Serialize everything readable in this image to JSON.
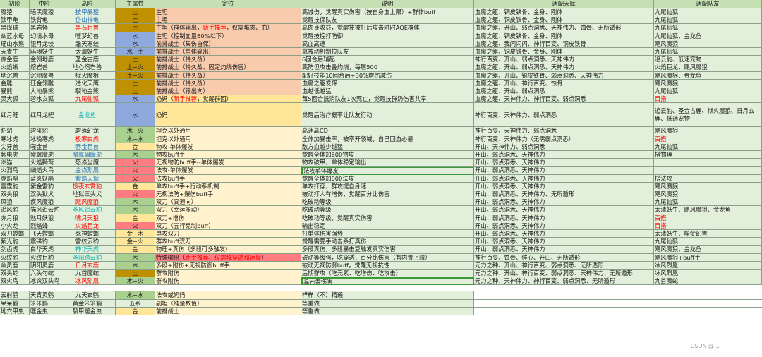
{
  "headers": [
    "初阶",
    "中阶",
    "高阶",
    "主属性",
    "定位",
    "说明",
    "适配天赋",
    "适配队友"
  ],
  "colors": {
    "header": "#c6e0b4",
    "body": "#e2efda",
    "earth": "#bf9000",
    "water": "#8ea9db",
    "fire": "#ff7c80",
    "wood": "#a9d08e",
    "gold": "#ffe699",
    "red_text": "#ff0000",
    "blue_text": "#2e75b6",
    "teal_text": "#00b0b0"
  },
  "rows": [
    {
      "c": [
        "魔猿",
        "暗黑魔猿",
        "披甲暴猿",
        "土",
        "主坦",
        "高减伤，觉醒真实伤害（按自身血上限）+群体buff",
        "血魔之躯、铜皮铁骨、金身、刚体",
        "九尾仙狐"
      ],
      "hc": "blue",
      "el": "earth",
      "pos": "#f8cbad"
    },
    {
      "c": [
        "锁甲龟",
        "铁背龟",
        "岱山神龟",
        "土",
        "主坦",
        "觉醒技保队友",
        "血魔之躯、铜皮铁骨、金身、刚体",
        "九尾仙狐"
      ],
      "hc": "blue",
      "el": "earth",
      "pos": "#f8cbad"
    },
    {
      "c": [
        "黑煤球",
        "黑岩怪",
        "黑石巨兽",
        "土",
        "主坦（群体输出，新手推荐，仅需堆肉、血）",
        "高肉身收益，觉醒技被打后攻击时时AOE群体",
        "血魔之躯、开山、弱点洞悉、天神伟力、蚀骨、无所遁形",
        "九尾仙狐"
      ],
      "hc": "red",
      "el": "earth",
      "pos": "#f8cbad",
      "posParts": [
        "主坦（群体输出，",
        "新手推荐",
        "，仅需堆肉、血）"
      ]
    },
    {
      "c": [
        "幽蓝水母",
        "幻境水母",
        "噬梦幻兽",
        "水",
        "主坦（控制血量60%以下）",
        "觉醒技控打防御",
        "血魔之躯、铜皮铁骨、金身、刚体",
        "九尾仙狐、金龙鱼"
      ],
      "el": "water",
      "pos": "#f8cbad"
    },
    {
      "c": [
        "瑶山水熊",
        "银月龙饺",
        "霜天寒蛟",
        "水",
        "前排战士（集伤自保）",
        "高血高速",
        "血魔之躯、我闪闪闪、神行百变、铜皮铁骨",
        "飓风魔狼"
      ],
      "el": "water",
      "pos": "#f8cbad"
    },
    {
      "c": [
        "天青牛",
        "暗魂妖牛",
        "太清妖牛",
        "水+土",
        "前排战士（单体输出）",
        "靠被动机制拉队友",
        "血魔之躯、铜皮铁骨、金身、刚体",
        "九尾仙狐"
      ],
      "el": "water",
      "pos": "#f8cbad"
    },
    {
      "c": [
        "赤金鹿",
        "金翎地鹿",
        "圣金古鹿",
        "土",
        "前排战士（持久战）",
        "6回合后辅起",
        "神行百变、开山、弱点洞悉、天神伟力",
        "追云豹、低速宠物"
      ],
      "el": "earth",
      "pos": "#f8cbad"
    },
    {
      "c": [
        "火焰蜥",
        "熔岩兽",
        "地心熔岩兽",
        "土+火",
        "前排战士（持久战、固定灼烧伤害）",
        "高防但攻击叠灼烧，每层500",
        "血魔之躯、开山、弱点洞悉、天神伟力",
        "火焰巨龙、飓风魔狼"
      ],
      "el": "earth",
      "pos": "#f8cbad"
    },
    {
      "c": [
        "地沉兽",
        "沉地魔兽",
        "狱火魔狼",
        "土+火",
        "前排战士（持久战）",
        "配好技能10回合后+30%增伤减伤",
        "血魔之躯、开山、铜皮铁骨、弱点洞悉、天神伟力",
        "飓风魔狼、金龙鱼"
      ],
      "el": "earth",
      "pos": "#f8cbad"
    },
    {
      "c": [
        "金雕",
        "狂金翎雕",
        "造化天鹰",
        "土",
        "前排战士（持久战）",
        "血魔之躯发挥",
        "血魔之躯、开山、神行百变、蚀骨",
        "飓风魔狼"
      ],
      "el": "earth",
      "pos": "#f8cbad"
    },
    {
      "c": [
        "暴熊",
        "大地暴熊",
        "裂地金熊",
        "土",
        "前排战士（输出向）",
        "血越低越猛",
        "血魔之躯、开山、弱点洞悉",
        "九尾仙狐"
      ],
      "el": "earth",
      "pos": "#f8cbad"
    },
    {
      "c": [
        "灵犬狐",
        "碧水玄狐",
        "九尾仙狐",
        "水",
        "奶妈（新手推荐，觉醒群回）",
        "每5回合抵消队友1次死亡，觉醒技群奶伤害共享",
        "血魔之躯、天神伟力、神行百变、弱点洞悉",
        "百搭"
      ],
      "hc": "red",
      "el": "water",
      "pos": "#ffe699",
      "posParts": [
        "奶妈（",
        "新手推荐",
        "，觉醒群回）"
      ],
      "lastRed": true
    },
    {
      "c": [
        "红月鲤",
        "红月龙鲤",
        "金龙鱼",
        "水",
        "奶妈",
        "觉醒后治疗概率让队友行动",
        "神行百变、天神伟力、弱点洞悉",
        "追云豹、圣金古鹿、狱火魔狼、日月玄鹿、低速宠物"
      ],
      "hc": "teal",
      "el": "water",
      "pos": "#ffe699",
      "tall": true
    },
    {
      "c": [
        "貂貂",
        "碧玺貂",
        "碧落幻龙",
        "木+火",
        "坦克以外通用",
        "高速高CD",
        "神行百变、天神伟力、弱点洞悉",
        "飓风魔狼"
      ],
      "el": "wood",
      "pos": "#fff2cc"
    },
    {
      "c": [
        "寒冰虎",
        "冰晚寒虎",
        "极寒白虎",
        "木+水",
        "坦克以外通用",
        "全体加暴击率，被率开领域，自己回血必暴",
        "神行百变、天神伟力（无需弱点洞悉）",
        "百搭"
      ],
      "hc": "red",
      "el": "wood",
      "pos": "#fff2cc",
      "lastRed": true
    },
    {
      "c": [
        "尖牙兽",
        "噬金兽",
        "吞金巨兽",
        "金",
        "物攻-单体爆发",
        "敌方血越少越猛",
        "开山、天神伟力、弱点洞悉",
        "九尾仙狐"
      ],
      "hc": "blue",
      "el": "gold",
      "pos": "#fff2cc"
    },
    {
      "c": [
        "紫电虎",
        "紫翼魔虎",
        "魔翼幽瞳虎",
        "木",
        "物攻buff手",
        "觉醒全体加600物攻",
        "开山、弱点洞悉、天神伟力",
        "搭物理"
      ],
      "hc": "blue",
      "el": "wood",
      "pos": "#fff2cc"
    },
    {
      "c": [
        "炎猫",
        "火焰狮鹫",
        "怒焱当魔",
        "火",
        "无视物防buff手--单体爆发",
        "物攻破甲，单体稳定输出",
        "开山、弱点洞悉、天神伟力",
        ""
      ],
      "el": "fire",
      "pos": "#fff2cc"
    },
    {
      "c": [
        "火烈鸟",
        "幽焰火鸟",
        "金焱烈凰",
        "火",
        "法攻-单体爆发",
        "法攻单体爆发",
        "开山、弱点洞悉、天神伟力",
        ""
      ],
      "hc": "blue",
      "el": "fire",
      "pos": "#fff2cc",
      "hl": 5
    },
    {
      "c": [
        "赤焰鹃",
        "蓝炎妖鹃",
        "紫焰天鹫",
        "火",
        "法攻buff手",
        "觉醒全体加600法攻",
        "开山、弱点洞悉、天神伟力",
        "搭法攻"
      ],
      "hc": "blue",
      "el": "fire",
      "pos": "#fff2cc"
    },
    {
      "c": [
        "雷霆豹",
        "紫金雷豹",
        "极夜玄霄豹",
        "金",
        "单攻buff手+行动系机制",
        "单攻打穿，群攻提自身速",
        "开山、弱点洞悉、天神伟力",
        "飓风魔狼"
      ],
      "hc": "red",
      "el": "gold",
      "pos": "#fff2cc"
    },
    {
      "c": [
        "双头狼",
        "双头狱犬",
        "地狱三头犬",
        "火",
        "无视法防+爆伤buff手",
        "被动打人有增伤，觉醒百分比伤害",
        "开山、弱点洞悉、天神伟力、无所遁形",
        "飓风魔狼"
      ],
      "el": "fire",
      "pos": "#fff2cc"
    },
    {
      "c": [
        "风狼",
        "疾风魔狼",
        "飓风魔狼",
        "木",
        "双刀（高速向）",
        "吃破动等级",
        "开山、弱点洞悉、天神伟力",
        "九尾仙狐"
      ],
      "hc": "red",
      "el": "wood",
      "pos": "#fff2cc"
    },
    {
      "c": [
        "追风豹",
        "猫风追云豹",
        "圣风追云豹",
        "木",
        "双刀（幸运多动）",
        "吃破动等级",
        "开山、弱点洞悉、天神伟力",
        "太清妖牛、飓风魔狼、金龙鱼"
      ],
      "hc": "teal",
      "el": "wood",
      "pos": "#fff2cc"
    },
    {
      "c": [
        "赤月狼",
        "魅月妖狼",
        "啸月天狼",
        "金",
        "双刀+增伤",
        "吃破动等级，觉醒真实伤害",
        "开山、弱点洞悉、天神伟力",
        "百搭"
      ],
      "hc": "red",
      "el": "gold",
      "pos": "#fff2cc",
      "lastRed": true
    },
    {
      "c": [
        "小火龙",
        "烈焰蜂",
        "火焰巨龙",
        "火",
        "双刀（五行克制buff）",
        "输出稳定",
        "开山、弱点洞悉、天神伟力",
        "百搭"
      ],
      "hc": "red",
      "el": "fire",
      "pos": "#fff2cc",
      "lastRed": true
    },
    {
      "c": [
        "双刀螳螂",
        "飞天螳螂",
        "死神螳螂",
        "金+木",
        "单攻双刀",
        "打单体伤害强势",
        "开山、弱点洞悉、天神伟力",
        "太清妖牛、噬梦幻兽"
      ],
      "el": "gold",
      "pos": "#fff2cc"
    },
    {
      "c": [
        "紫光豹",
        "震磁豹",
        "雷纹云豹",
        "金+火",
        "群攻buff双刀",
        "觉醒需要手动击杀打真伤",
        "开山、弱点洞悉、天神伟力",
        "九尾仙狐"
      ],
      "el": "gold",
      "pos": "#fff2cc"
    },
    {
      "c": [
        "剑齿虎",
        "白华天虎",
        "神华天虎",
        "金",
        "物理+真伤（多段可多触发）",
        "多段真伤，多段暴击复触发真实伤害",
        "开山、弱点洞悉、天神伟力",
        "飓风魔狼、金龙鱼"
      ],
      "hc": "teal",
      "el": "gold",
      "pos": "#fff2cc"
    },
    {
      "c": [
        "火纹豹",
        "火纹巨豹",
        "圣阳踏云豹",
        "木",
        "特殊输出（新手推荐，仅需堆穿透和速度）",
        "破动等级强，吃穿透，百分比伤害（有内置上限）",
        "神行百变、蚀骨、催心、开山、无所遁形",
        "飓风魔狼+buff手"
      ],
      "hc": "teal",
      "el": "wood",
      "pos": "#ff7c80",
      "posParts": [
        "特殊输出（",
        "新手推荐、仅需堆穿透和速度",
        "）"
      ]
    },
    {
      "c": [
        "幽灵鹿",
        "阴阳灵鹿",
        "日月玄鹿",
        "木",
        "多段+附伤+无视防御buff手",
        "被动无视防御buff，觉醒无视抗性",
        "元力之种、开山、神行百变、弱点洞悉、无所遁形",
        "冰风烈凰"
      ],
      "hc": "red",
      "el": "wood",
      "pos": "#fff2cc"
    },
    {
      "c": [
        "双头蛇",
        "六头勾蛇",
        "九首魔蛇",
        "土",
        "群攻附伤",
        "后期群攻（吃元素、吃增伤、吃攻击）",
        "元力之种、开山、神行百变、弱点洞悉、天神伟力、无所遁形",
        "冰风烈凰"
      ],
      "el": "earth",
      "pos": "#fff2cc"
    },
    {
      "c": [
        "双火鸟",
        "冰炎双头鸟",
        "冰风烈凰",
        "木+火",
        "群攻附伤",
        "高元素伤害",
        "元力之种、天神伟力、神行百变、弱点洞悉、无所遁形",
        "九首魔蛇"
      ],
      "hc": "red",
      "el": "wood",
      "pos": "#fff2cc",
      "hl": 5
    },
    {
      "c": [
        "云射鹤",
        "天青灵鹤",
        "九天玄鹤",
        "木+水",
        "法攻或奶妈",
        "样样（不）精通",
        "",
        ""
      ],
      "el": "wood",
      "pos": "#fff2cc",
      "gapBefore": true,
      "noRight": true
    },
    {
      "c": [
        "呆呆鹤",
        "笨笨鹤",
        "黄金笨笨鹤",
        "五系",
        "副坦（纯量数值）",
        "等重做",
        "",
        ""
      ],
      "el": "none",
      "pos": "#fff2cc",
      "noRight": true
    },
    {
      "c": [
        "地穴甲虫",
        "噬金虫",
        "裂甲噬金虫",
        "金",
        "前排战士",
        "等重做",
        "",
        ""
      ],
      "el": "gold",
      "pos": "#fff2cc",
      "noRight": true
    }
  ],
  "watermark": "CSDN @…"
}
